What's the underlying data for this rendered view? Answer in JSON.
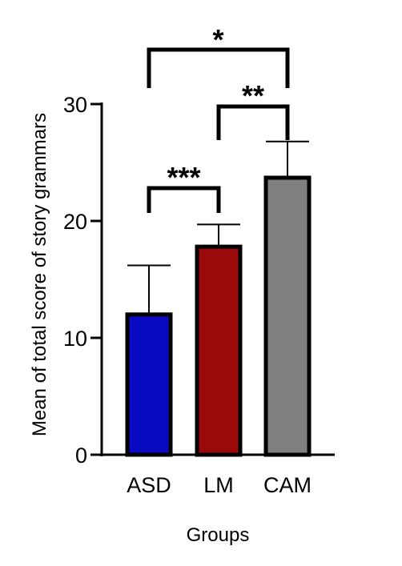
{
  "chart_data": {
    "type": "bar",
    "xlabel": "Groups",
    "ylabel": "Mean of total score of story grammars",
    "ylim": [
      0,
      30
    ],
    "yticks": [
      0,
      10,
      20,
      30
    ],
    "yticks_text": [
      "0",
      "10",
      "20",
      "30"
    ],
    "grid": false,
    "legend": "none",
    "categories": [
      "ASD",
      "LM",
      "CAM"
    ],
    "values": [
      12,
      17.8,
      23.7
    ],
    "error_upper": [
      16.2,
      19.7,
      26.8
    ],
    "colors": [
      "#0a0ac2",
      "#9a0a0a",
      "#808080"
    ],
    "significance": [
      {
        "from": "ASD",
        "to": "LM",
        "label": "***"
      },
      {
        "from": "LM",
        "to": "CAM",
        "label": "**"
      },
      {
        "from": "ASD",
        "to": "CAM",
        "label": "*"
      }
    ]
  }
}
